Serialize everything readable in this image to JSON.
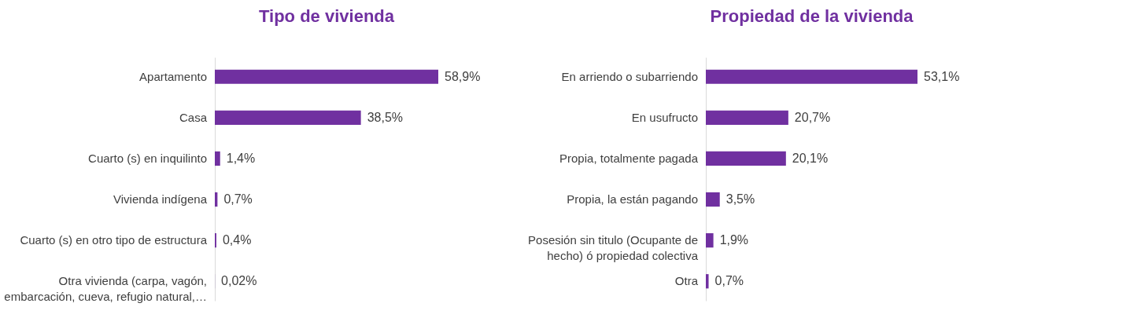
{
  "chart_data": [
    {
      "type": "bar",
      "orientation": "horizontal",
      "title": "Tipo de vivienda",
      "color": "#7030a0",
      "categories": [
        "Apartamento",
        "Casa",
        "Cuarto (s) en inquilinto",
        "Vivienda indígena",
        "Cuarto (s) en otro  tipo de estructura",
        "Otra vivienda (carpa, vagón, embarcación, cueva, refugio natural,…"
      ],
      "values": [
        58.9,
        38.5,
        1.4,
        0.7,
        0.4,
        0.02
      ],
      "value_labels": [
        "58,9%",
        "38,5%",
        "1,4%",
        "0,7%",
        "0,4%",
        "0,02%"
      ]
    },
    {
      "type": "bar",
      "orientation": "horizontal",
      "title": "Propiedad de la vivienda",
      "color": "#7030a0",
      "categories": [
        "En arriendo o subarriendo",
        "En usufructo",
        "Propia, totalmente pagada",
        "Propia, la están pagando",
        "Posesión sin titulo (Ocupante de hecho) ó propiedad colectiva",
        "Otra"
      ],
      "values": [
        53.1,
        20.7,
        20.1,
        3.5,
        1.9,
        0.7
      ],
      "value_labels": [
        "53,1%",
        "20,7%",
        "20,1%",
        "3,5%",
        "1,9%",
        "0,7%"
      ]
    }
  ]
}
